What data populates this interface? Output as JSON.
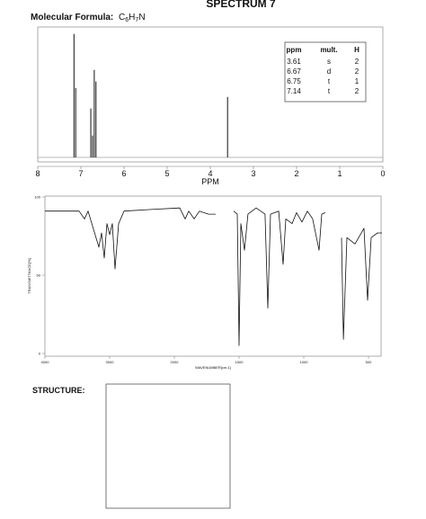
{
  "title": "SPECTRUM 7",
  "formula": {
    "label": "Molecular Formula:",
    "parts": [
      "C",
      "6",
      "H",
      "7",
      "N"
    ]
  },
  "nmr": {
    "xlim": [
      8,
      0
    ],
    "xticks": [
      8,
      7,
      6,
      5,
      4,
      3,
      2,
      1,
      0
    ],
    "xlabel": "PPM",
    "peaks": [
      {
        "ppm": 7.16,
        "intensity": 96
      },
      {
        "ppm": 7.12,
        "intensity": 54
      },
      {
        "ppm": 6.77,
        "intensity": 38
      },
      {
        "ppm": 6.73,
        "intensity": 17
      },
      {
        "ppm": 6.69,
        "intensity": 68
      },
      {
        "ppm": 6.65,
        "intensity": 59
      },
      {
        "ppm": 3.6,
        "intensity": 47
      }
    ],
    "table": {
      "header": [
        "ppm",
        "mult.",
        "H"
      ],
      "rows": [
        [
          3.61,
          "s",
          2
        ],
        [
          6.67,
          "d",
          2
        ],
        [
          6.75,
          "t",
          1
        ],
        [
          7.14,
          "t",
          2
        ]
      ]
    }
  },
  "ir": {
    "xlim": [
      4000,
      400
    ],
    "xticks": [
      4000,
      3000,
      2000,
      1500,
      1000,
      500
    ],
    "ylim": [
      0,
      100
    ],
    "yticks": [
      0,
      50,
      100
    ],
    "xlabel": "WAVENUMBER[cm-1]",
    "ylabel": "TRANSMITTANCE[%]",
    "x": [
      4000,
      3472,
      3389,
      3333,
      3167,
      3125,
      3083,
      3042,
      3000,
      2958,
      2917,
      2861,
      2778,
      2361,
      1958,
      1917,
      1889,
      1847,
      1806,
      1736,
      1681,
      null,
      1542,
      1514,
      1500,
      1486,
      1458,
      1431,
      1368,
      1299,
      1278,
      1257,
      1194,
      1160,
      1139,
      1090,
      1056,
      1014,
      972,
      931,
      882,
      861,
      833,
      null,
      708,
      694,
      667,
      604,
      535,
      507,
      479,
      431,
      396
    ],
    "y": [
      91,
      91,
      86,
      91,
      68,
      77,
      61,
      83,
      76,
      83,
      54,
      83,
      91,
      92,
      93,
      86,
      91,
      86,
      91,
      89,
      89,
      null,
      91,
      89,
      5,
      83,
      66,
      89,
      93,
      89,
      29,
      89,
      91,
      57,
      86,
      83,
      90,
      84,
      91,
      86,
      66,
      89,
      90,
      null,
      74,
      9,
      74,
      70,
      80,
      34,
      74,
      77,
      77
    ]
  },
  "structure": {
    "label": "STRUCTURE:"
  }
}
